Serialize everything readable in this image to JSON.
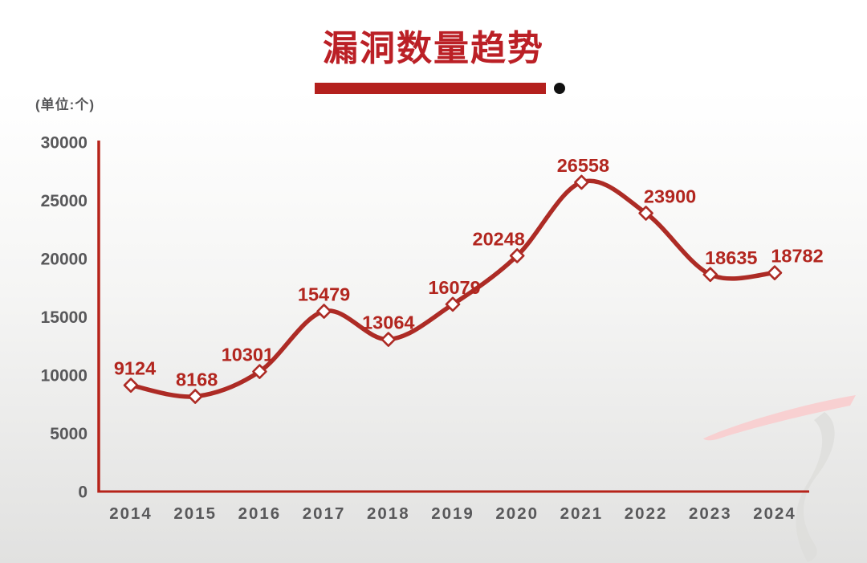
{
  "header": {
    "title": "漏洞数量趋势",
    "unit_label": "(单位:个)"
  },
  "chart_data": {
    "type": "line",
    "title": "漏洞数量趋势",
    "unit": "(单位:个)",
    "categories": [
      "2014",
      "2015",
      "2016",
      "2017",
      "2018",
      "2019",
      "2020",
      "2021",
      "2022",
      "2023",
      "2024"
    ],
    "series": [
      {
        "name": "漏洞数量",
        "values": [
          9124,
          8168,
          10301,
          15479,
          13064,
          16079,
          20248,
          26558,
          23900,
          18635,
          18782
        ]
      }
    ],
    "data_labels": [
      "9124",
      "8168",
      "10301",
      "15479",
      "13064",
      "16079",
      "20248",
      "26558",
      "23900",
      "18635",
      "18782"
    ],
    "yticks": [
      0,
      5000,
      10000,
      15000,
      20000,
      25000,
      30000
    ],
    "ylim": [
      0,
      30000
    ],
    "grid": false,
    "legend": "none",
    "marker": "diamond-open",
    "colors": {
      "title": "#bb2026",
      "title_bar": "#b4201d",
      "title_dot": "#111111",
      "line": "#ad2b25",
      "marker_fill": "#ffffff",
      "marker_stroke": "#ad2b25",
      "data_label": "#b2261f",
      "axis": "#b6231a",
      "tick_text": "#58585a",
      "watermark_pink": "#f9cfd0",
      "watermark_gray": "#dddddb"
    }
  }
}
